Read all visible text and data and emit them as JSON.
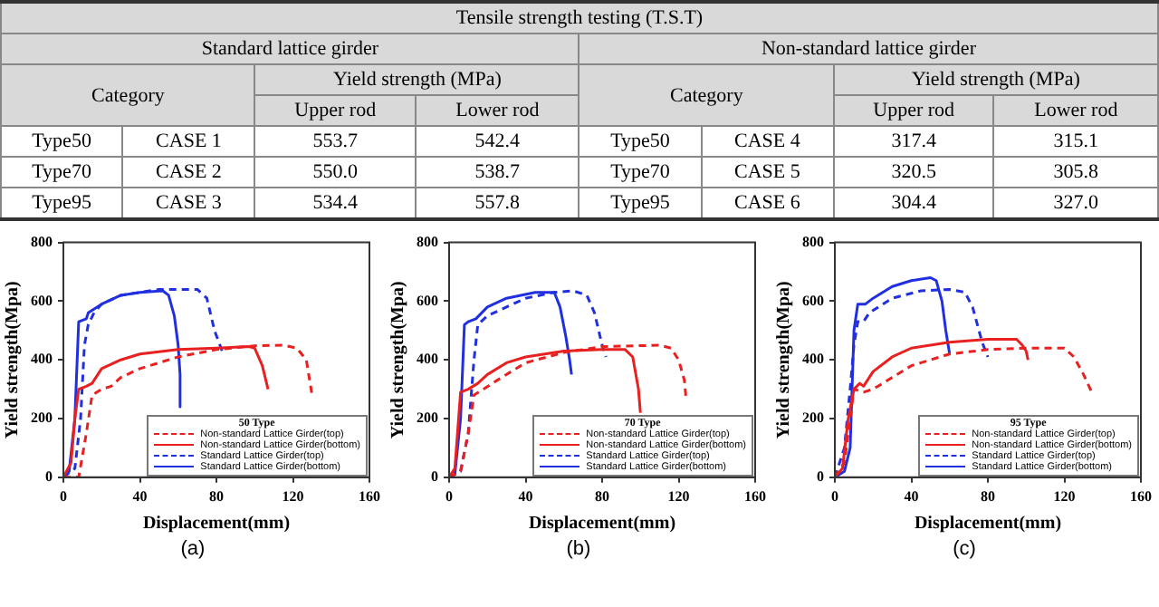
{
  "chart_data": [
    {
      "type": "other",
      "title": "Tensile strength testing (T.S.T)",
      "annotations": [
        "Standard lattice girder",
        "Non-standard lattice girder",
        "Category",
        "Yield strength (MPa)",
        "Upper rod",
        "Lower rod",
        "Category",
        "Yield strength (MPa)",
        "Upper rod",
        "Lower rod",
        "Type50",
        "CASE 1",
        "553.7",
        "542.4",
        "Type50",
        "CASE 4",
        "317.4",
        "315.1",
        "Type70",
        "CASE 2",
        "550.0",
        "538.7",
        "Type70",
        "CASE 5",
        "320.5",
        "305.8",
        "Type95",
        "CASE 3",
        "534.4",
        "557.8",
        "Type95",
        "CASE 6",
        "304.4",
        "327.0"
      ]
    },
    {
      "type": "line",
      "xlabel": "Displacement(mm)",
      "ylabel": "Yield strength(Mpa)",
      "legend_title": "50 Type",
      "legend": "bottom right",
      "grid": false,
      "marker": "none",
      "xlim": [
        0,
        160
      ],
      "xticks": [
        0,
        40,
        80,
        120,
        160
      ],
      "ylim": [
        0,
        800
      ],
      "yticks": [
        0,
        200,
        400,
        600,
        800
      ],
      "annotations": [
        "(a)"
      ],
      "series": [
        {
          "name": "Non-standard Lattice Girder(top)",
          "color": "#e82020",
          "line_style": "dashed",
          "x": [
            0,
            8,
            12,
            15,
            20,
            25,
            30,
            40,
            60,
            80,
            100,
            115,
            122,
            127,
            130
          ],
          "values": [
            0,
            0,
            150,
            280,
            300,
            310,
            340,
            370,
            410,
            435,
            448,
            450,
            440,
            400,
            280
          ]
        },
        {
          "name": "Non-standard Lattice Girder(bottom)",
          "color": "#e82020",
          "line_style": "solid",
          "x": [
            0,
            4,
            6,
            8,
            12,
            15,
            20,
            30,
            40,
            60,
            80,
            97,
            100,
            104,
            107
          ],
          "values": [
            0,
            50,
            200,
            300,
            310,
            320,
            370,
            400,
            420,
            435,
            440,
            445,
            440,
            380,
            300
          ]
        },
        {
          "name": "Standard Lattice Girder(top)",
          "color": "#2030e0",
          "line_style": "dashed",
          "x": [
            0,
            6,
            9,
            11,
            13,
            16,
            20,
            30,
            50,
            60,
            70,
            75,
            79,
            83
          ],
          "values": [
            0,
            30,
            200,
            450,
            520,
            560,
            590,
            620,
            640,
            640,
            640,
            610,
            500,
            430
          ]
        },
        {
          "name": "Standard Lattice Girder(bottom)",
          "color": "#2030e0",
          "line_style": "solid",
          "x": [
            0,
            3,
            6,
            8,
            12,
            13,
            20,
            30,
            40,
            52,
            55,
            58,
            60,
            61,
            61
          ],
          "values": [
            0,
            20,
            200,
            530,
            540,
            560,
            590,
            620,
            630,
            635,
            620,
            550,
            450,
            350,
            240
          ]
        }
      ]
    },
    {
      "type": "line",
      "xlabel": "Displacement(mm)",
      "ylabel": "Yield strength(Mpa)",
      "legend_title": "70 Type",
      "legend": "bottom right",
      "grid": false,
      "marker": "none",
      "xlim": [
        0,
        160
      ],
      "xticks": [
        0,
        40,
        80,
        120,
        160
      ],
      "ylim": [
        0,
        800
      ],
      "yticks": [
        0,
        200,
        400,
        600,
        800
      ],
      "annotations": [
        "(b)"
      ],
      "series": [
        {
          "name": "Non-standard Lattice Girder(top)",
          "color": "#e82020",
          "line_style": "dashed",
          "x": [
            0,
            6,
            10,
            13,
            18,
            25,
            40,
            60,
            80,
            110,
            116,
            120,
            123,
            124
          ],
          "values": [
            0,
            20,
            150,
            280,
            300,
            330,
            390,
            425,
            445,
            450,
            440,
            400,
            330,
            260
          ]
        },
        {
          "name": "Non-standard Lattice Girder(bottom)",
          "color": "#e82020",
          "line_style": "solid",
          "x": [
            0,
            3,
            6,
            10,
            15,
            20,
            30,
            40,
            60,
            80,
            92,
            96,
            99,
            100
          ],
          "values": [
            0,
            30,
            290,
            300,
            320,
            350,
            390,
            410,
            430,
            435,
            435,
            410,
            300,
            220
          ]
        },
        {
          "name": "Standard Lattice Girder(top)",
          "color": "#2030e0",
          "line_style": "dashed",
          "x": [
            0,
            6,
            10,
            13,
            15,
            20,
            30,
            40,
            55,
            65,
            72,
            76,
            80,
            82
          ],
          "values": [
            0,
            20,
            150,
            400,
            520,
            550,
            580,
            610,
            630,
            635,
            620,
            560,
            450,
            410
          ]
        },
        {
          "name": "Standard Lattice Girder(bottom)",
          "color": "#2030e0",
          "line_style": "solid",
          "x": [
            0,
            3,
            6,
            8,
            10,
            14,
            20,
            30,
            45,
            55,
            58,
            61,
            63,
            64
          ],
          "values": [
            0,
            10,
            200,
            520,
            530,
            540,
            580,
            610,
            630,
            630,
            580,
            480,
            400,
            350
          ]
        }
      ]
    },
    {
      "type": "line",
      "xlabel": "Displacement(mm)",
      "ylabel": "Yield strength(Mpa)",
      "legend_title": "95 Type",
      "legend": "bottom right",
      "grid": false,
      "marker": "none",
      "xlim": [
        0,
        160
      ],
      "xticks": [
        0,
        40,
        80,
        120,
        160
      ],
      "ylim": [
        0,
        800
      ],
      "yticks": [
        0,
        200,
        400,
        600,
        800
      ],
      "annotations": [
        "(c)"
      ],
      "series": [
        {
          "name": "Non-standard Lattice Girder(top)",
          "color": "#e82020",
          "line_style": "dashed",
          "x": [
            0,
            5,
            8,
            10,
            15,
            20,
            30,
            40,
            60,
            80,
            100,
            120,
            125,
            130,
            135
          ],
          "values": [
            0,
            50,
            200,
            300,
            290,
            300,
            340,
            380,
            420,
            435,
            440,
            440,
            410,
            350,
            280
          ]
        },
        {
          "name": "Non-standard Lattice Girder(bottom)",
          "color": "#e82020",
          "line_style": "solid",
          "x": [
            0,
            4,
            7,
            10,
            13,
            15,
            20,
            30,
            40,
            60,
            80,
            95,
            98,
            100,
            101
          ],
          "values": [
            0,
            30,
            200,
            300,
            320,
            310,
            360,
            410,
            440,
            460,
            470,
            470,
            450,
            430,
            400
          ]
        },
        {
          "name": "Standard Lattice Girder(top)",
          "color": "#2030e0",
          "line_style": "dashed",
          "x": [
            0,
            5,
            8,
            10,
            12,
            15,
            18,
            30,
            45,
            60,
            68,
            72,
            77,
            80
          ],
          "values": [
            0,
            100,
            300,
            450,
            530,
            530,
            560,
            610,
            635,
            640,
            630,
            580,
            460,
            410
          ]
        },
        {
          "name": "Standard Lattice Girder(bottom)",
          "color": "#2030e0",
          "line_style": "solid",
          "x": [
            0,
            5,
            8,
            10,
            12,
            16,
            20,
            30,
            40,
            50,
            53,
            56,
            58,
            60
          ],
          "values": [
            0,
            20,
            100,
            500,
            590,
            590,
            610,
            650,
            670,
            680,
            670,
            600,
            500,
            420
          ]
        }
      ]
    }
  ]
}
